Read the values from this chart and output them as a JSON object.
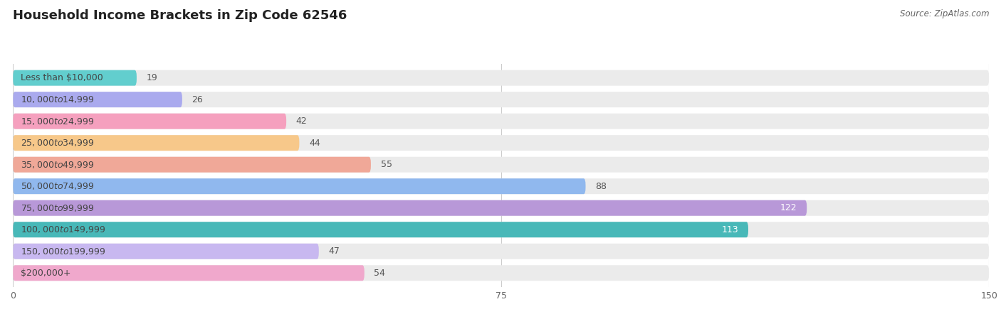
{
  "title": "Household Income Brackets in Zip Code 62546",
  "source": "Source: ZipAtlas.com",
  "categories": [
    "Less than $10,000",
    "$10,000 to $14,999",
    "$15,000 to $24,999",
    "$25,000 to $34,999",
    "$35,000 to $49,999",
    "$50,000 to $74,999",
    "$75,000 to $99,999",
    "$100,000 to $149,999",
    "$150,000 to $199,999",
    "$200,000+"
  ],
  "values": [
    19,
    26,
    42,
    44,
    55,
    88,
    122,
    113,
    47,
    54
  ],
  "bar_colors": [
    "#62cece",
    "#aaaaee",
    "#f5a0be",
    "#f7c88a",
    "#f0a898",
    "#90b8ee",
    "#b898d8",
    "#48b8b8",
    "#c8b8f0",
    "#f0a8cc"
  ],
  "label_inside_bar": [
    true,
    true,
    true,
    true,
    true,
    true,
    true,
    true,
    true,
    true
  ],
  "value_inside": [
    false,
    false,
    false,
    false,
    false,
    false,
    true,
    true,
    false,
    false
  ],
  "xlim": [
    0,
    150
  ],
  "xticks": [
    0,
    75,
    150
  ],
  "background_color": "#ffffff",
  "bar_bg_color": "#ebebeb",
  "title_fontsize": 13,
  "label_fontsize": 9,
  "value_fontsize": 9,
  "source_fontsize": 8.5,
  "bar_height": 0.72,
  "n_bars": 10
}
